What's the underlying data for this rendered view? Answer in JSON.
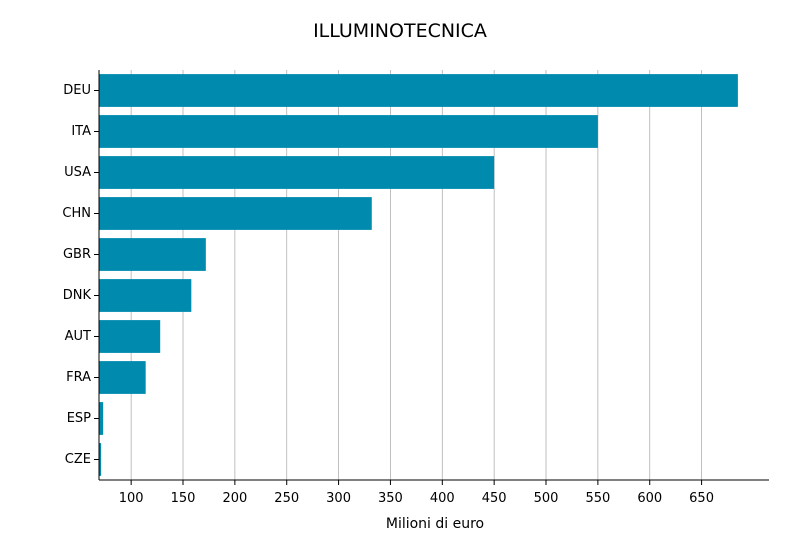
{
  "chart_data": {
    "type": "bar",
    "orientation": "horizontal",
    "title": "ILLUMINOTECNICA",
    "xlabel": "Milioni di euro",
    "ylabel": "",
    "categories": [
      "DEU",
      "ITA",
      "USA",
      "CHN",
      "GBR",
      "DNK",
      "AUT",
      "FRA",
      "ESP",
      "CZE"
    ],
    "values": [
      685,
      550,
      450,
      332,
      172,
      158,
      128,
      114,
      73,
      71
    ],
    "xlim": [
      69,
      715
    ],
    "xticks": [
      100,
      150,
      200,
      250,
      300,
      350,
      400,
      450,
      500,
      550,
      600,
      650
    ],
    "grid": "vertical",
    "bar_color": "#008aad"
  }
}
